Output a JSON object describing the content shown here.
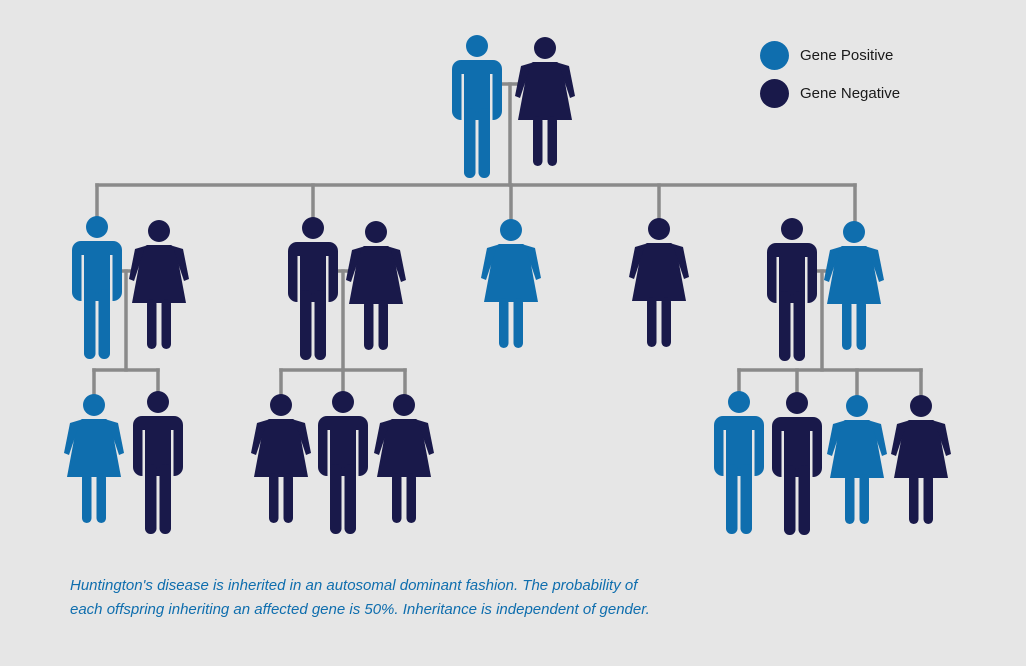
{
  "colors": {
    "positive": "#0f6eae",
    "negative": "#19194a",
    "connector": "#8a8a8a"
  },
  "legend": {
    "positive_label": "Gene Positive",
    "negative_label": "Gene Negative"
  },
  "caption": {
    "line1": "Huntington's disease is inherited in an autosomal dominant fashion. The probability of",
    "line2": "each offspring inheriting an affected gene is 50%. Inheritance is independent of gender."
  },
  "pedigree": {
    "generation_1": [
      {
        "sex": "male",
        "status": "positive"
      },
      {
        "sex": "female",
        "status": "negative"
      }
    ],
    "generation_2": [
      {
        "sex": "male",
        "status": "positive"
      },
      {
        "sex": "female",
        "status": "negative",
        "role": "spouse"
      },
      {
        "sex": "male",
        "status": "negative"
      },
      {
        "sex": "female",
        "status": "negative",
        "role": "spouse"
      },
      {
        "sex": "female",
        "status": "positive"
      },
      {
        "sex": "female",
        "status": "negative"
      },
      {
        "sex": "male",
        "status": "negative",
        "role": "spouse"
      },
      {
        "sex": "female",
        "status": "positive"
      }
    ],
    "generation_3": [
      {
        "sex": "female",
        "status": "positive"
      },
      {
        "sex": "male",
        "status": "negative"
      },
      {
        "sex": "female",
        "status": "negative"
      },
      {
        "sex": "male",
        "status": "negative"
      },
      {
        "sex": "female",
        "status": "negative"
      },
      {
        "sex": "male",
        "status": "positive"
      },
      {
        "sex": "male",
        "status": "negative"
      },
      {
        "sex": "female",
        "status": "positive"
      },
      {
        "sex": "female",
        "status": "negative"
      }
    ]
  }
}
